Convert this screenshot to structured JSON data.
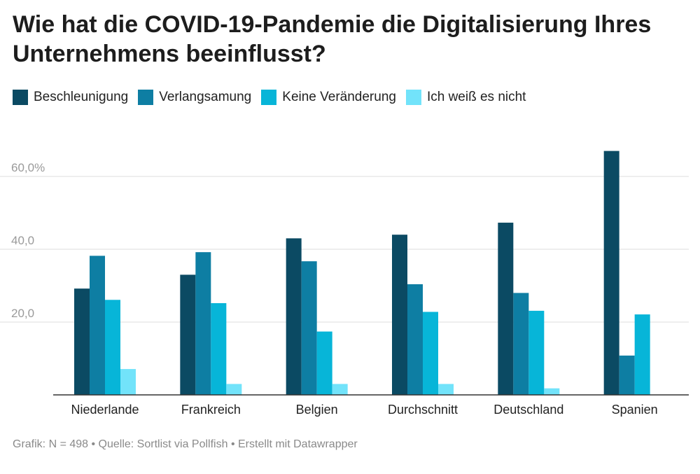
{
  "title": "Wie hat die COVID-19-Pandemie die Digitalisierung Ihres Unternehmens beeinflusst?",
  "footer": "Grafik: N = 498 • Quelle: Sortlist via Pollfish • Erstellt mit Datawrapper",
  "chart_data": {
    "type": "bar",
    "title": "Wie hat die COVID-19-Pandemie die Digitalisierung Ihres Unternehmens beeinflusst?",
    "categories": [
      "Niederlande",
      "Frankreich",
      "Belgien",
      "Durchschnitt",
      "Deutschland",
      "Spanien"
    ],
    "series": [
      {
        "name": "Beschleunigung",
        "color": "#0b4a63",
        "values": [
          29.2,
          33.0,
          43.0,
          44.0,
          47.3,
          67.0
        ]
      },
      {
        "name": "Verlangsamung",
        "color": "#0e7ea3",
        "values": [
          38.2,
          39.2,
          36.7,
          30.4,
          28.0,
          10.8
        ]
      },
      {
        "name": "Keine Veränderung",
        "color": "#07b5d8",
        "values": [
          26.1,
          25.2,
          17.4,
          22.8,
          23.1,
          22.1
        ]
      },
      {
        "name": "Ich weiß es nicht",
        "color": "#72e3fa",
        "values": [
          7.1,
          3.0,
          3.0,
          3.0,
          1.8,
          0
        ]
      }
    ],
    "yticks": [
      {
        "value": 20,
        "label": "20,0"
      },
      {
        "value": 40,
        "label": "40,0"
      },
      {
        "value": 60,
        "label": "60,0%"
      }
    ],
    "ylim": [
      0,
      70
    ],
    "grid": true,
    "legend_position": "top-left"
  }
}
